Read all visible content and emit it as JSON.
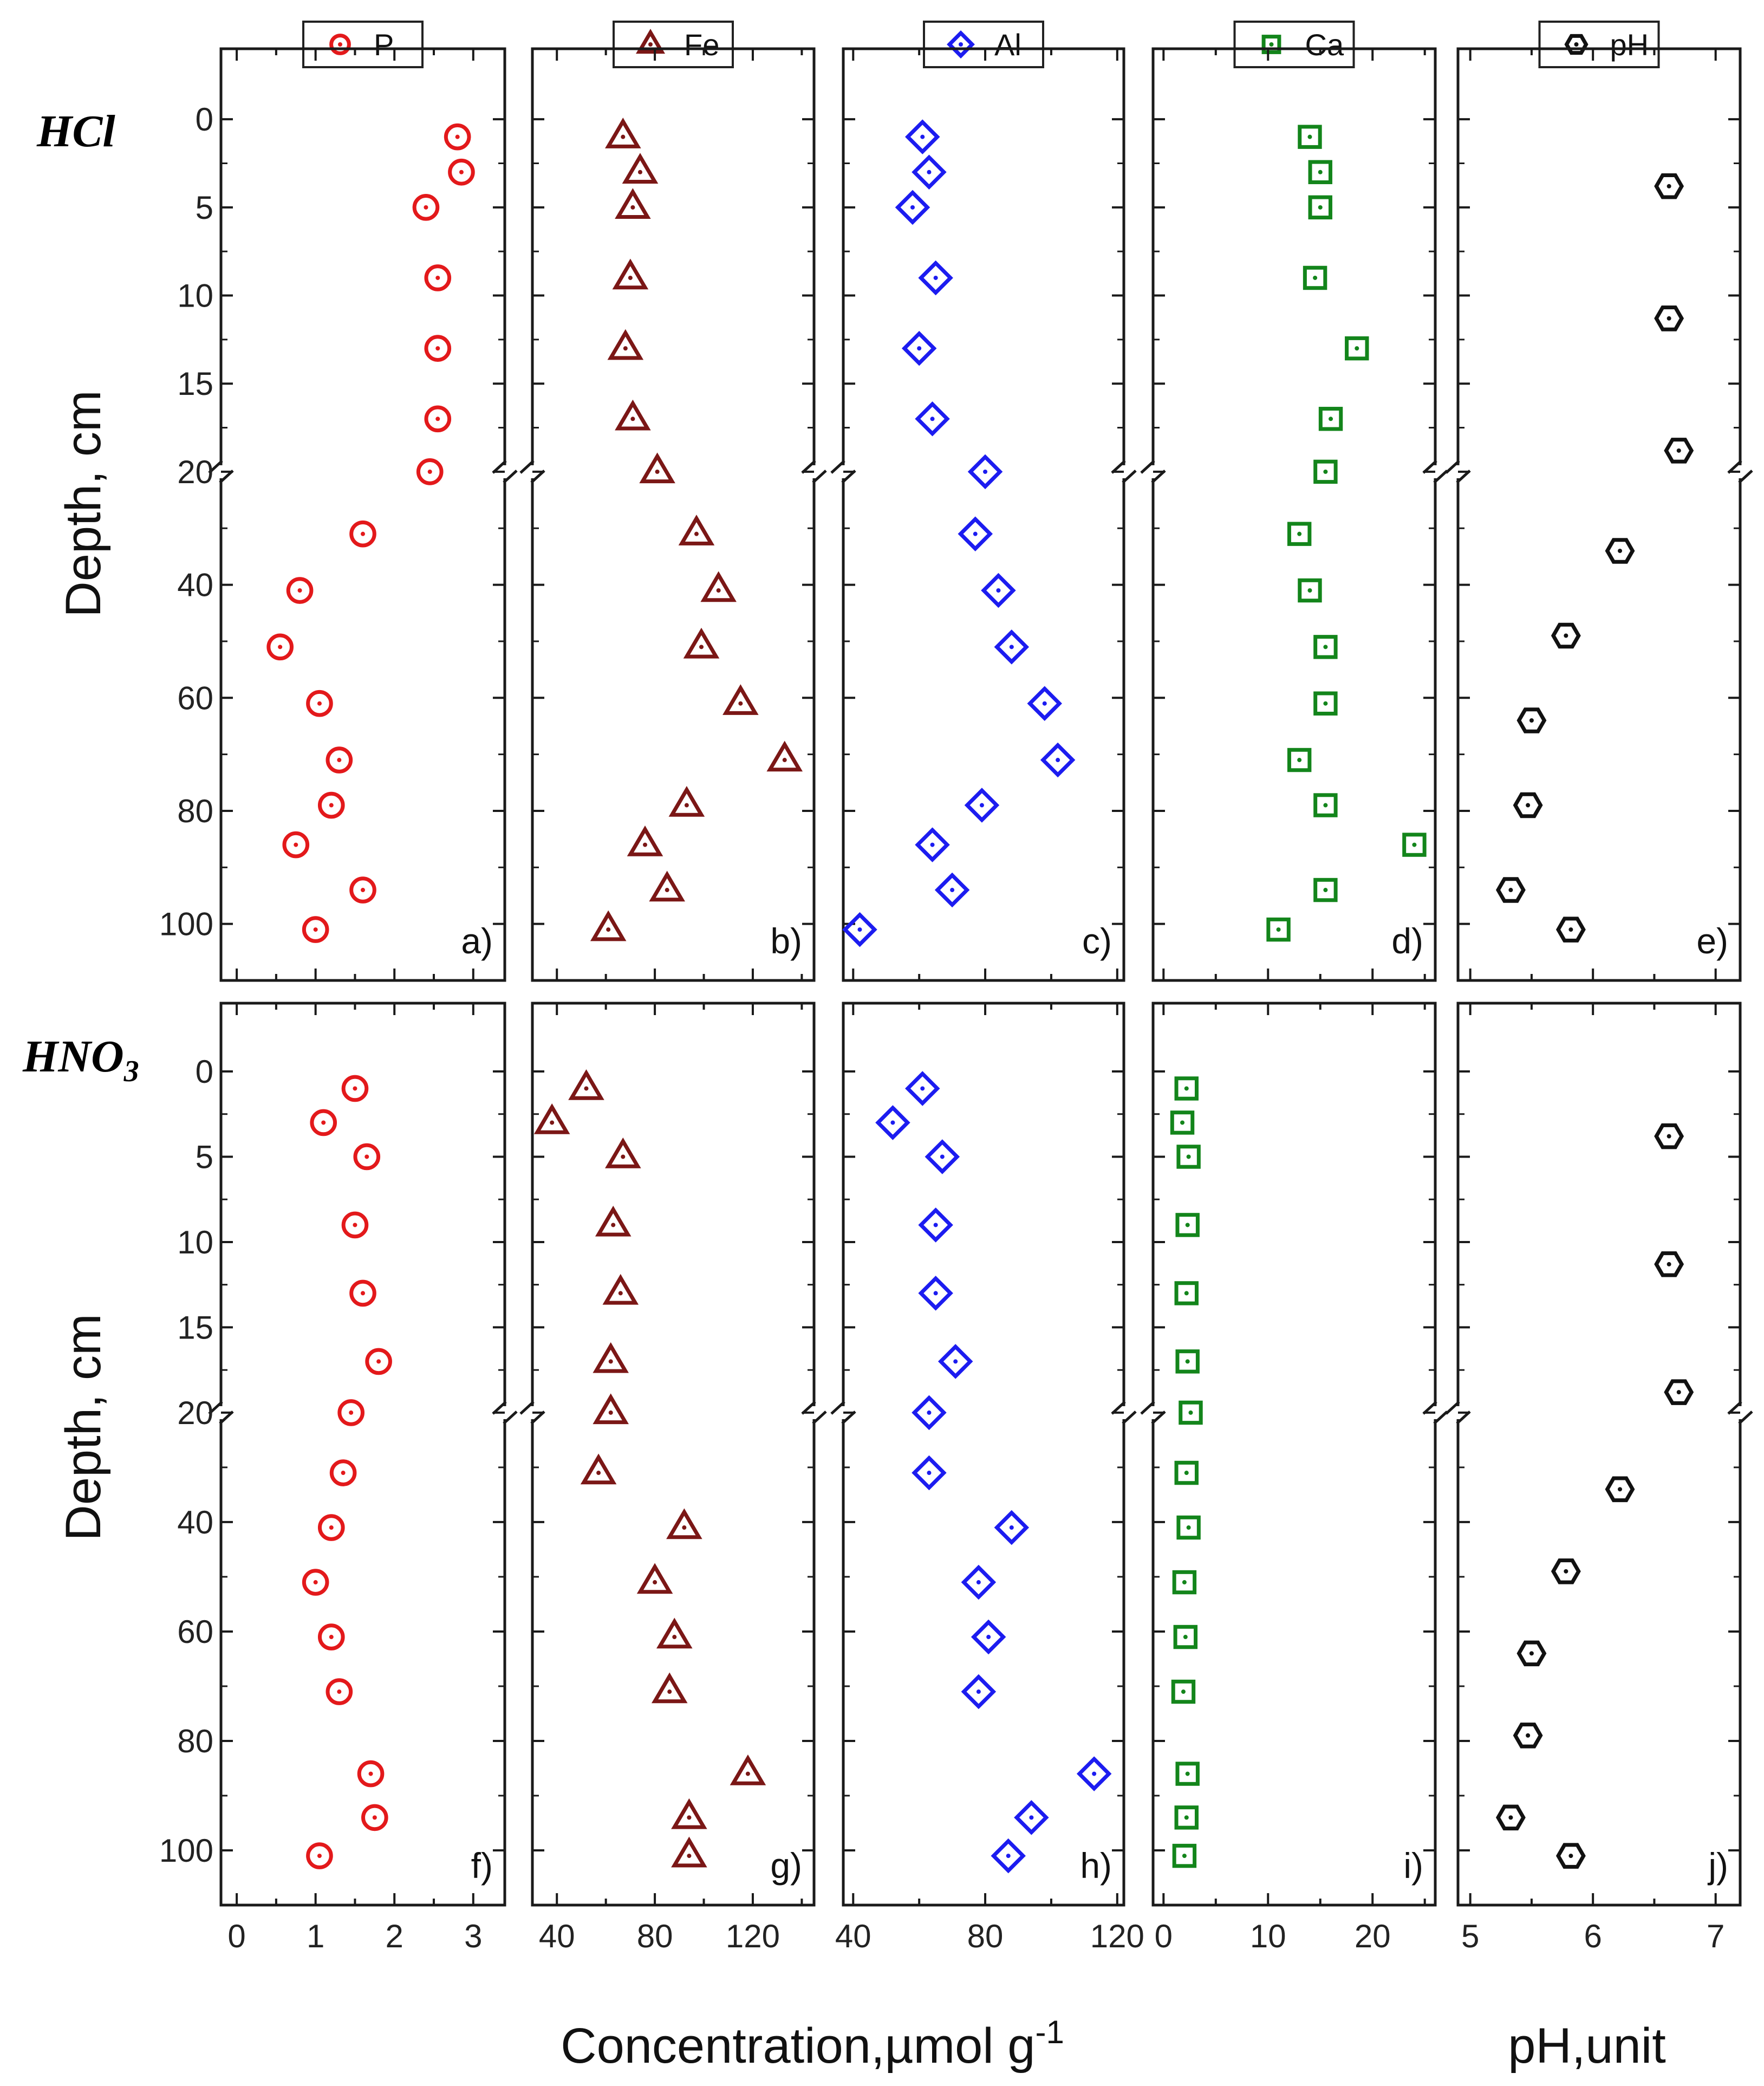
{
  "figure": {
    "row_labels": [
      "HCl",
      "HNO3"
    ],
    "y_axis_label": "Depth, cm",
    "conc_axis_label": "Concentration,µmol g",
    "conc_axis_exp": "-1",
    "ph_axis_label": "pH,unit",
    "depth_ticks": [
      "0",
      "5",
      "10",
      "15",
      "20",
      "40",
      "60",
      "80",
      "100"
    ]
  },
  "chart_data": {
    "type": "scatter",
    "y_axis": {
      "label": "Depth, cm",
      "inverted": true,
      "broken": true,
      "upper_segment_range": [
        -4,
        20
      ],
      "lower_segment_range": [
        20,
        110
      ],
      "tick_labels": [
        0,
        5,
        10,
        15,
        20,
        40,
        60,
        80,
        100
      ]
    },
    "legend": [
      {
        "label": "P",
        "marker": "circle",
        "color": "#e3191b"
      },
      {
        "label": "Fe",
        "marker": "triangle",
        "color": "#7b1716"
      },
      {
        "label": "Al",
        "marker": "diamond",
        "color": "#1c1cf0"
      },
      {
        "label": "Ca",
        "marker": "square",
        "color": "#13851b"
      },
      {
        "label": "pH",
        "marker": "hexagon",
        "color": "#111111"
      }
    ],
    "panels": [
      {
        "id": "a",
        "label": "a)",
        "row": "HCl",
        "series": "P",
        "xlim": [
          -0.2,
          3.4
        ],
        "xticks": [
          0,
          1,
          2,
          3
        ],
        "depth": [
          1,
          3,
          5,
          9,
          13,
          17,
          20,
          31,
          41,
          51,
          61,
          71,
          79,
          86,
          94,
          101
        ],
        "values": [
          2.8,
          2.85,
          2.4,
          2.55,
          2.55,
          2.55,
          2.45,
          1.6,
          0.8,
          0.55,
          1.05,
          1.3,
          1.2,
          0.75,
          1.6,
          1.0
        ]
      },
      {
        "id": "b",
        "label": "b)",
        "row": "HCl",
        "series": "Fe",
        "xlim": [
          30,
          145
        ],
        "xticks": [
          40,
          80,
          120
        ],
        "depth": [
          1,
          3,
          5,
          9,
          13,
          17,
          20,
          31,
          41,
          51,
          61,
          71,
          79,
          86,
          94,
          101
        ],
        "values": [
          67,
          74,
          71,
          70,
          68,
          71,
          81,
          97,
          106,
          99,
          115,
          133,
          93,
          76,
          85,
          61
        ]
      },
      {
        "id": "c",
        "label": "c)",
        "row": "HCl",
        "series": "Al",
        "xlim": [
          37,
          122
        ],
        "xticks": [
          40,
          80,
          120
        ],
        "depth": [
          1,
          3,
          5,
          9,
          13,
          17,
          20,
          31,
          41,
          51,
          61,
          71,
          79,
          86,
          94,
          101
        ],
        "values": [
          61,
          63,
          58,
          65,
          60,
          64,
          80,
          77,
          84,
          88,
          98,
          102,
          79,
          64,
          70,
          42
        ]
      },
      {
        "id": "d",
        "label": "d)",
        "row": "HCl",
        "series": "Ca",
        "xlim": [
          -1,
          26
        ],
        "xticks": [],
        "depth": [
          1,
          3,
          5,
          9,
          13,
          17,
          20,
          31,
          41,
          51,
          61,
          71,
          79,
          86,
          94,
          101
        ],
        "values": [
          14,
          15,
          15,
          14.5,
          18.5,
          16,
          15.5,
          13,
          14,
          15.5,
          15.5,
          13,
          15.5,
          24,
          15.5,
          11
        ]
      },
      {
        "id": "e",
        "label": "e)",
        "row": "HCl",
        "series": "pH",
        "xlim": [
          4.9,
          7.2
        ],
        "xticks": [],
        "depth": [
          3.8,
          11.3,
          18.8,
          34,
          49,
          64,
          79,
          94,
          101
        ],
        "values": [
          6.62,
          6.62,
          6.7,
          6.22,
          5.78,
          5.5,
          5.47,
          5.33,
          5.82
        ]
      },
      {
        "id": "f",
        "label": "f)",
        "row": "HNO3",
        "series": "P",
        "xlim": [
          -0.2,
          3.4
        ],
        "xticks": [
          0,
          1,
          2,
          3
        ],
        "depth": [
          1,
          3,
          5,
          9,
          13,
          17,
          20,
          31,
          41,
          51,
          61,
          71,
          86,
          94,
          101
        ],
        "values": [
          1.5,
          1.1,
          1.65,
          1.5,
          1.6,
          1.8,
          1.45,
          1.35,
          1.2,
          1.0,
          1.2,
          1.3,
          1.7,
          1.75,
          1.05
        ]
      },
      {
        "id": "g",
        "label": "g)",
        "row": "HNO3",
        "series": "Fe",
        "xlim": [
          30,
          145
        ],
        "xticks": [
          40,
          80,
          120
        ],
        "depth": [
          1,
          3,
          5,
          9,
          13,
          17,
          20,
          31,
          41,
          51,
          61,
          71,
          86,
          94,
          101
        ],
        "values": [
          52,
          38,
          67,
          63,
          66,
          62,
          62,
          57,
          92,
          80,
          88,
          86,
          118,
          94,
          94
        ]
      },
      {
        "id": "h",
        "label": "h)",
        "row": "HNO3",
        "series": "Al",
        "xlim": [
          37,
          122
        ],
        "xticks": [
          40,
          80,
          120
        ],
        "depth": [
          1,
          3,
          5,
          9,
          13,
          17,
          20,
          31,
          41,
          51,
          61,
          71,
          86,
          94,
          101
        ],
        "values": [
          61,
          52,
          67,
          65,
          65,
          71,
          63,
          63,
          88,
          78,
          81,
          78,
          113,
          94,
          87
        ]
      },
      {
        "id": "i",
        "label": "i)",
        "row": "HNO3",
        "series": "Ca",
        "xlim": [
          -1,
          26
        ],
        "xticks": [
          0,
          10,
          20
        ],
        "depth": [
          1,
          3,
          5,
          9,
          13,
          17,
          20,
          31,
          41,
          51,
          61,
          71,
          86,
          94,
          101
        ],
        "values": [
          2.2,
          1.8,
          2.4,
          2.3,
          2.2,
          2.3,
          2.6,
          2.2,
          2.4,
          2.0,
          2.1,
          1.9,
          2.3,
          2.2,
          2.0
        ]
      },
      {
        "id": "j",
        "label": "j)",
        "row": "HNO3",
        "series": "pH",
        "xlim": [
          4.9,
          7.2
        ],
        "xticks": [
          5,
          6,
          7
        ],
        "depth": [
          3.8,
          11.3,
          18.8,
          34,
          49,
          64,
          79,
          94,
          101
        ],
        "values": [
          6.62,
          6.62,
          6.7,
          6.22,
          5.78,
          5.5,
          5.47,
          5.33,
          5.82
        ]
      }
    ]
  }
}
